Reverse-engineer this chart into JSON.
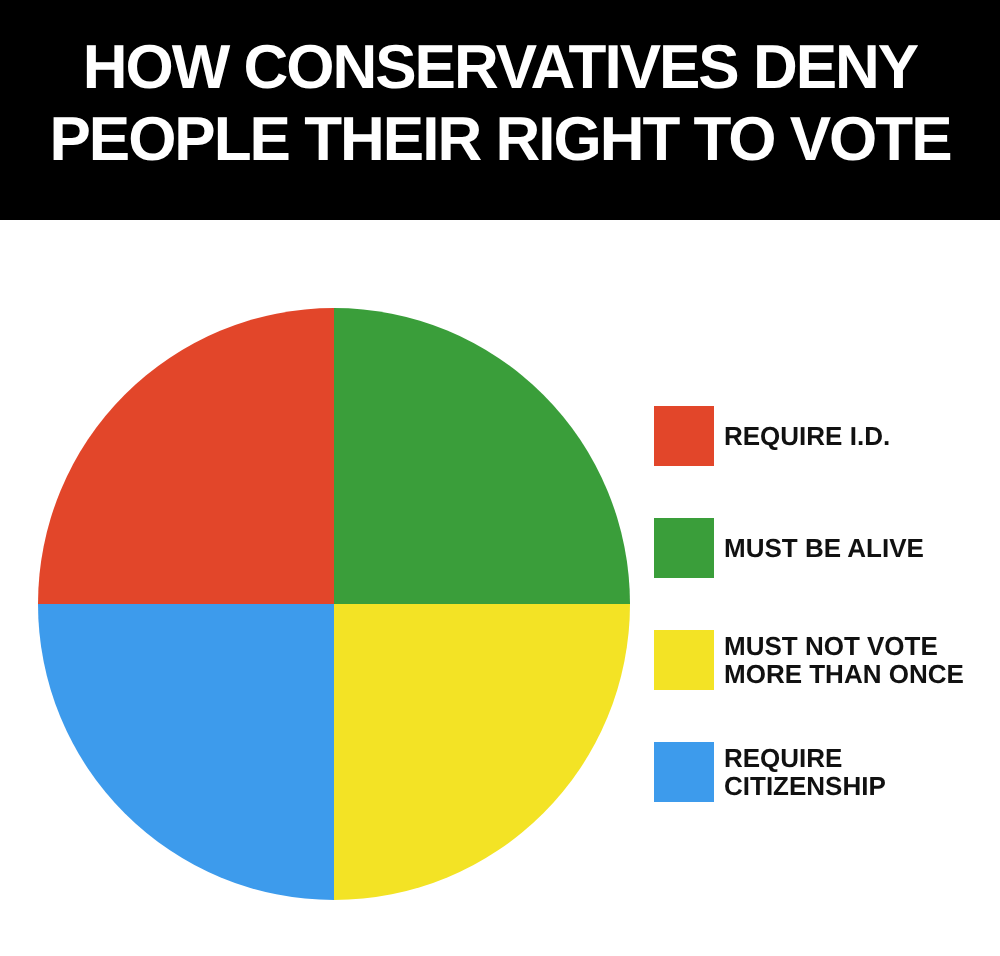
{
  "chart_data": {
    "type": "pie",
    "title": "HOW CONSERVATIVES DENY\nPEOPLE THEIR RIGHT TO VOTE",
    "categories": [
      "REQUIRE I.D.",
      "MUST BE ALIVE",
      "MUST NOT VOTE\nMORE THAN ONCE",
      "REQUIRE\nCITIZENSHIP"
    ],
    "values": [
      25,
      25,
      25,
      25
    ],
    "colors": [
      "#e2462a",
      "#3a9e3a",
      "#f3e325",
      "#3d9bec"
    ],
    "legend": "right"
  }
}
